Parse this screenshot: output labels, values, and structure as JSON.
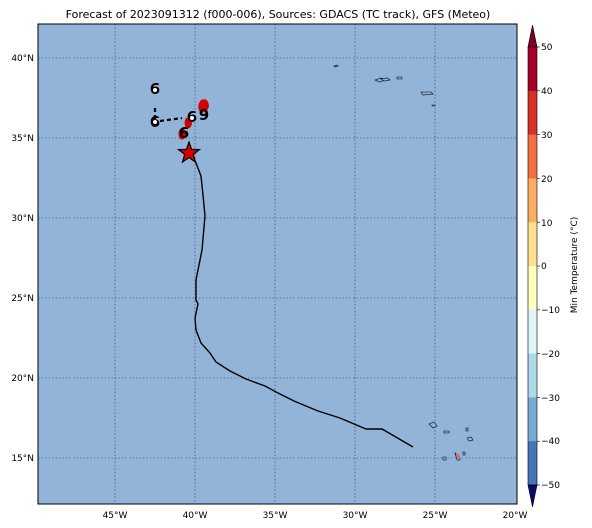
{
  "title": "Forecast of 2023091312 (f000-006), Sources: GDACS (TC track), GFS (Meteo)",
  "map": {
    "ocean_color": "#92b4d9",
    "track_color": "#000000",
    "marker_color": "#d40000",
    "lat_labels": [
      "40°N",
      "35°N",
      "30°N",
      "25°N",
      "20°N",
      "15°N"
    ],
    "lon_labels": [
      "45°W",
      "40°W",
      "35°W",
      "30°W",
      "25°W",
      "20°W"
    ],
    "grid": true,
    "symbols": [
      "tropical-cyclone-symbol",
      "tropical-cyclone-symbol",
      "tropical-cyclone-symbol",
      "tropical-cyclone-symbol",
      "tropical-cyclone-symbol"
    ],
    "star_marker": "current-position-star-icon"
  },
  "colorbar": {
    "label": "Min Temperature (°C)",
    "ticks": [
      "50",
      "40",
      "30",
      "20",
      "10",
      "0",
      "−10",
      "−20",
      "−30",
      "−40",
      "−50"
    ],
    "colors": [
      "#a50026",
      "#d73027",
      "#f46d43",
      "#fdae61",
      "#fee090",
      "#ffffbf",
      "#e0f3f8",
      "#abd9e9",
      "#74add1",
      "#4575b4",
      "#313695"
    ],
    "over_color": "#800026",
    "under_color": "#0a0a6e"
  }
}
